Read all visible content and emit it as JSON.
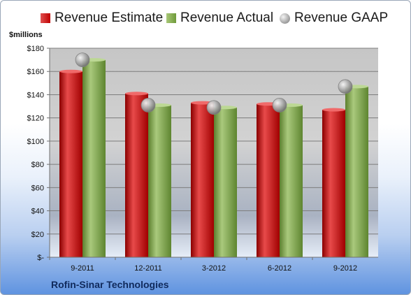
{
  "legend": {
    "estimate": "Revenue Estimate",
    "actual": "Revenue Actual",
    "gaap": "Revenue GAAP"
  },
  "unit_label": "$millions",
  "company": "Rofin-Sinar Technologies",
  "colors": {
    "estimate": "#c00000",
    "actual": "#77a040",
    "gaap": "#a0a0a0",
    "plot_top": "#c8c8c8",
    "plot_bottom": "#e0e8f4"
  },
  "chart_data": {
    "type": "bar",
    "categories": [
      "9-2011",
      "12-2011",
      "3-2012",
      "6-2012",
      "9-2012"
    ],
    "series": [
      {
        "name": "Revenue Estimate",
        "values": [
          160,
          141,
          133,
          132,
          127
        ]
      },
      {
        "name": "Revenue Actual",
        "values": [
          170,
          131,
          129,
          131,
          147
        ]
      },
      {
        "name": "Revenue GAAP",
        "values": [
          170,
          131,
          129,
          131,
          147
        ],
        "style": "marker"
      }
    ],
    "ylim": [
      0,
      180
    ],
    "yticks": [
      "$-",
      "$20",
      "$40",
      "$60",
      "$80",
      "$100",
      "$120",
      "$140",
      "$160",
      "$180"
    ],
    "ylabel": "$millions",
    "grid": true,
    "legend": "top"
  }
}
